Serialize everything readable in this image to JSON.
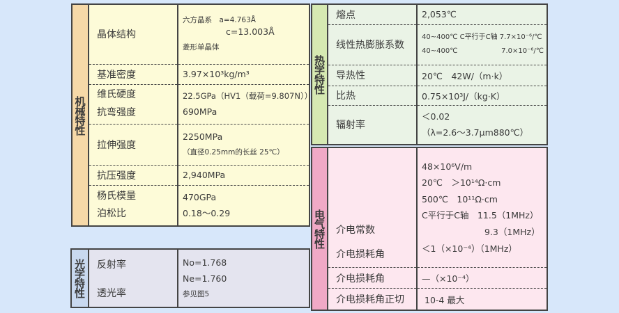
{
  "mechanical": {
    "category": "机械特性",
    "rows": [
      {
        "labels": [
          "晶体结构"
        ],
        "values": [
          "六方晶系　a=4.763Å",
          "c=13.003Å",
          "菱形单晶体"
        ]
      },
      {
        "labels": [
          "基准密度"
        ],
        "values": [
          "3.97×10³kg/m³"
        ]
      },
      {
        "labels": [
          "维氏硬度",
          "抗弯强度"
        ],
        "values": [
          "22.5GPa（HV1（载荷=9.807N））",
          "690MPa"
        ]
      },
      {
        "labels": [
          "拉伸强度"
        ],
        "values": [
          "2250MPa",
          "（直径0.25mm的长丝 25℃）"
        ]
      },
      {
        "labels": [
          "抗压强度"
        ],
        "values": [
          "2,940MPa"
        ]
      },
      {
        "labels": [
          "杨氏模量",
          "泊松比"
        ],
        "values": [
          "470GPa",
          "0.18～0.29"
        ]
      }
    ]
  },
  "optical": {
    "category": "光学特性",
    "rows": [
      {
        "labels": [
          "反射率",
          "透光率"
        ],
        "values": [
          "No=1.768",
          "Ne=1.760",
          "参见图5"
        ]
      }
    ]
  },
  "thermal": {
    "category": "热学特性",
    "rows": [
      {
        "labels": [
          "熔点"
        ],
        "values": [
          "2,053℃"
        ]
      },
      {
        "labels": [
          "线性热膨胀系数"
        ],
        "values": [
          "40~400℃  C平行于C轴  7.7×10⁻⁶/℃",
          "40~400℃",
          "7.0×10⁻⁶/℃"
        ]
      },
      {
        "labels": [
          "导热性"
        ],
        "values": [
          "20℃　42W/（m·k）"
        ]
      },
      {
        "labels": [
          "比热"
        ],
        "values": [
          "0.75×10³J/（kg·K）"
        ]
      },
      {
        "labels": [
          "辐射率"
        ],
        "values": [
          "＜0.02",
          "（λ=2.6～3.7μm880℃）"
        ]
      }
    ]
  },
  "electrical": {
    "category": "电气特性",
    "rows": [
      {
        "labels": [
          "介电常数",
          "介电损耗角"
        ],
        "values": [
          "48×10⁶V/m",
          "20℃　＞10¹⁴Ω·cm",
          "500℃　10¹¹Ω·cm",
          "C平行于C轴　11.5（1MHz）",
          "9.3（1MHz）",
          "＜1（×10⁻⁴）（1MHz）"
        ]
      },
      {
        "labels": [
          "介电损耗角"
        ],
        "values": [
          "—（×10⁻⁴）"
        ]
      },
      {
        "labels": [
          "介电损耗角正切"
        ],
        "values": [
          "10-4 最大"
        ]
      }
    ]
  }
}
